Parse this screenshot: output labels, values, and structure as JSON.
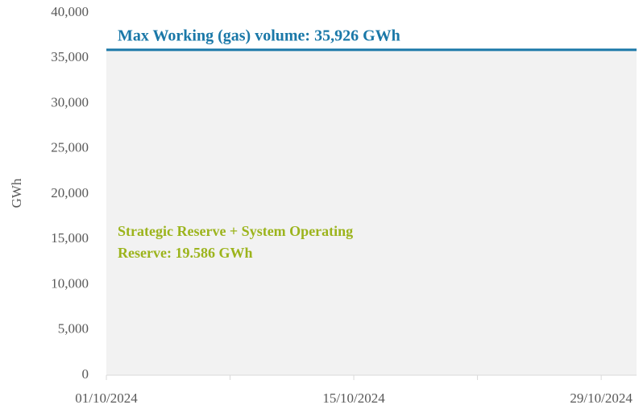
{
  "chart_data": {
    "type": "area",
    "y_axis_label": "GWh",
    "xlim": [
      1,
      31
    ],
    "xticks": [
      {
        "value": 1,
        "label": "01/10/2024"
      },
      {
        "value": 15,
        "label": "15/10/2024"
      },
      {
        "value": 29,
        "label": "29/10/2024"
      }
    ],
    "xminorticks": [
      8,
      22
    ],
    "ylim": [
      0,
      40000
    ],
    "yticks": [
      0,
      {
        "value": 5000,
        "label": "5,000"
      },
      {
        "value": 10000,
        "label": "10,000"
      },
      {
        "value": 15000,
        "label": "15,000"
      },
      {
        "value": 20000,
        "label": "20,000"
      },
      {
        "value": 25000,
        "label": "25,000"
      },
      {
        "value": 30000,
        "label": "30,000"
      },
      {
        "value": 35000,
        "label": "35,000"
      },
      {
        "value": 40000,
        "label": "40,000"
      }
    ],
    "max_volume": {
      "value": 35926,
      "line_color": "#1a78a8",
      "fill_color": "#f2f2f2",
      "label": "Max Working (gas) volume: 35,926 GWh"
    },
    "reserve": {
      "value": 19586,
      "label_lines": [
        "Strategic  Reserve + System  Operating",
        "Reserve:  19.586 GWh"
      ]
    }
  }
}
